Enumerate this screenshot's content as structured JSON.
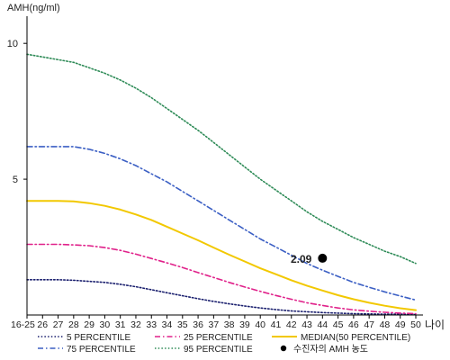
{
  "chart_data": {
    "type": "line",
    "ylabel": "AMH(ng/ml)",
    "xlabel": "나이",
    "categories": [
      "16-25",
      "26",
      "27",
      "28",
      "29",
      "30",
      "31",
      "32",
      "33",
      "34",
      "35",
      "36",
      "37",
      "38",
      "39",
      "40",
      "41",
      "42",
      "43",
      "44",
      "45",
      "46",
      "47",
      "48",
      "49",
      "50"
    ],
    "ylim": [
      0,
      11
    ],
    "yticks": [
      5,
      10
    ],
    "grid": false,
    "legend_position": "bottom",
    "series": [
      {
        "name": "5 PERCENTILE",
        "color": "#1a1f6e",
        "dash": "dotted",
        "values": [
          1.3,
          1.3,
          1.3,
          1.28,
          1.24,
          1.2,
          1.13,
          1.04,
          0.93,
          0.82,
          0.71,
          0.6,
          0.5,
          0.41,
          0.33,
          0.26,
          0.2,
          0.15,
          0.12,
          0.09,
          0.07,
          0.05,
          0.04,
          0.03,
          0.03,
          0.02
        ]
      },
      {
        "name": "75 PERCENTILE",
        "color": "#3b5fc4",
        "dash": "dash-dot",
        "values": [
          6.2,
          6.2,
          6.2,
          6.2,
          6.1,
          5.95,
          5.75,
          5.5,
          5.2,
          4.9,
          4.55,
          4.2,
          3.85,
          3.5,
          3.15,
          2.8,
          2.5,
          2.2,
          1.9,
          1.65,
          1.42,
          1.2,
          1.02,
          0.85,
          0.7,
          0.55
        ]
      },
      {
        "name": "25 PERCENTILE",
        "color": "#e0218a",
        "dash": "dash-dot",
        "values": [
          2.6,
          2.6,
          2.6,
          2.58,
          2.55,
          2.48,
          2.38,
          2.24,
          2.08,
          1.92,
          1.75,
          1.56,
          1.38,
          1.2,
          1.03,
          0.87,
          0.72,
          0.58,
          0.45,
          0.35,
          0.26,
          0.19,
          0.14,
          0.1,
          0.07,
          0.05
        ]
      },
      {
        "name": "95 PERCENTILE",
        "color": "#2e8b57",
        "dash": "dotted",
        "values": [
          9.6,
          9.5,
          9.4,
          9.3,
          9.1,
          8.9,
          8.65,
          8.35,
          8.0,
          7.6,
          7.2,
          6.8,
          6.35,
          5.9,
          5.45,
          5.0,
          4.6,
          4.2,
          3.8,
          3.45,
          3.15,
          2.85,
          2.6,
          2.35,
          2.15,
          1.9
        ]
      },
      {
        "name": "MEDIAN(50 PERCENTILE)",
        "color": "#f2c800",
        "dash": "solid",
        "values": [
          4.2,
          4.2,
          4.2,
          4.18,
          4.12,
          4.02,
          3.88,
          3.7,
          3.5,
          3.25,
          3.0,
          2.75,
          2.48,
          2.22,
          1.97,
          1.72,
          1.5,
          1.28,
          1.08,
          0.9,
          0.73,
          0.58,
          0.45,
          0.34,
          0.25,
          0.18
        ]
      }
    ],
    "marker": {
      "name": "수진자의 AMH 농도",
      "x": "44",
      "y": 2.09,
      "label": "2.09",
      "color": "#000000"
    }
  }
}
